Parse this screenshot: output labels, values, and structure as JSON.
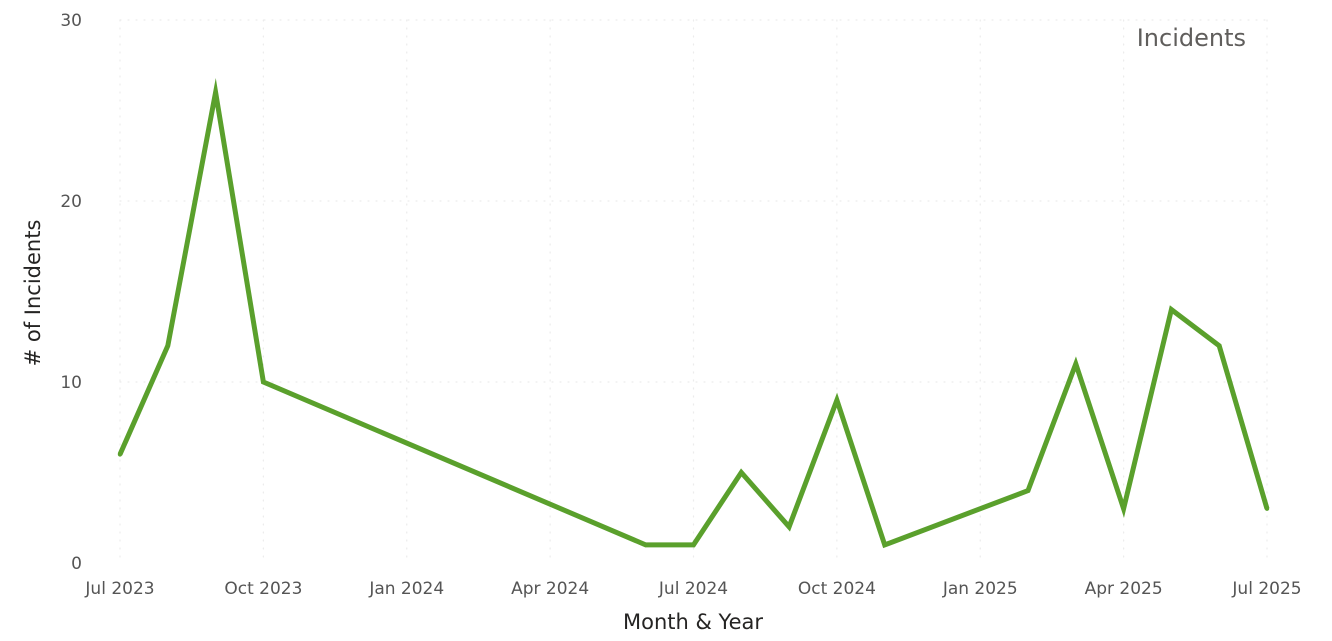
{
  "chart_data": {
    "type": "line",
    "title": "",
    "xlabel": "Month & Year",
    "ylabel": "# of Incidents",
    "legend": {
      "position": "top-right",
      "label": "Incidents"
    },
    "grid": true,
    "ylim": [
      0,
      30
    ],
    "yticks": [
      0,
      10,
      20,
      30
    ],
    "xlim": [
      "2023-07",
      "2025-07"
    ],
    "xticks": [
      {
        "date": "2023-07",
        "label": "Jul 2023"
      },
      {
        "date": "2023-10",
        "label": "Oct 2023"
      },
      {
        "date": "2024-01",
        "label": "Jan 2024"
      },
      {
        "date": "2024-04",
        "label": "Apr 2024"
      },
      {
        "date": "2024-07",
        "label": "Jul 2024"
      },
      {
        "date": "2024-10",
        "label": "Oct 2024"
      },
      {
        "date": "2025-01",
        "label": "Jan 2025"
      },
      {
        "date": "2025-04",
        "label": "Apr 2025"
      },
      {
        "date": "2025-07",
        "label": "Jul 2025"
      }
    ],
    "series": [
      {
        "name": "Incidents",
        "color": "#5aa02c",
        "points": [
          {
            "x": "2023-07",
            "y": 6
          },
          {
            "x": "2023-08",
            "y": 12
          },
          {
            "x": "2023-09",
            "y": 26
          },
          {
            "x": "2023-10",
            "y": 10
          },
          {
            "x": "2024-06",
            "y": 1
          },
          {
            "x": "2024-07",
            "y": 1
          },
          {
            "x": "2024-08",
            "y": 5
          },
          {
            "x": "2024-09",
            "y": 2
          },
          {
            "x": "2024-10",
            "y": 9
          },
          {
            "x": "2024-11",
            "y": 1
          },
          {
            "x": "2025-02",
            "y": 4
          },
          {
            "x": "2025-03",
            "y": 11
          },
          {
            "x": "2025-04",
            "y": 3
          },
          {
            "x": "2025-05",
            "y": 14
          },
          {
            "x": "2025-06",
            "y": 12
          },
          {
            "x": "2025-07",
            "y": 3
          }
        ]
      }
    ]
  }
}
